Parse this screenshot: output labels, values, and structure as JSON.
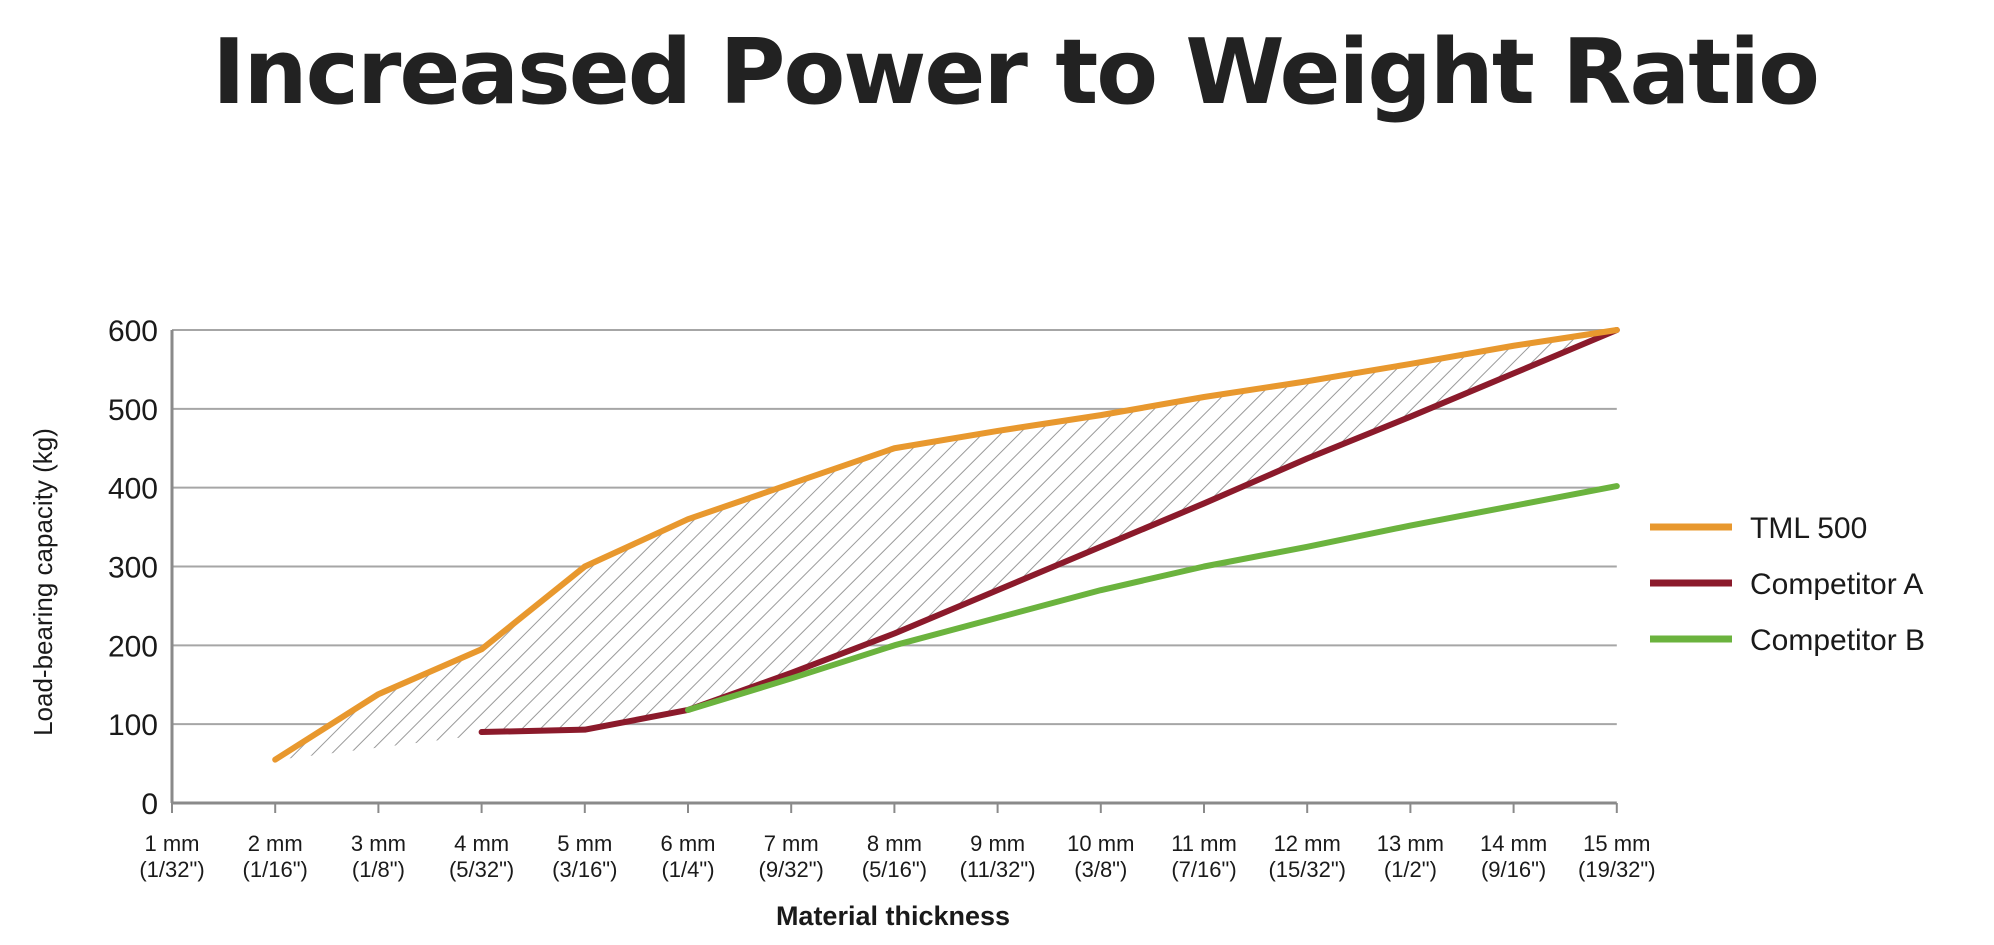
{
  "title": "Increased Power to Weight Ratio",
  "chart_data": {
    "type": "line",
    "xlabel": "Material thickness",
    "ylabel": "Load-bearing capacity (kg)",
    "ylim": [
      0,
      600
    ],
    "yticks": [
      0,
      100,
      200,
      300,
      400,
      500,
      600
    ],
    "grid": "horizontal",
    "legend_position": "right",
    "categories": [
      {
        "mm": "1 mm",
        "inch": "(1/32\")"
      },
      {
        "mm": "2 mm",
        "inch": "(1/16\")"
      },
      {
        "mm": "3 mm",
        "inch": "(1/8\")"
      },
      {
        "mm": "4 mm",
        "inch": "(5/32\")"
      },
      {
        "mm": "5 mm",
        "inch": "(3/16\")"
      },
      {
        "mm": "6 mm",
        "inch": "(1/4\")"
      },
      {
        "mm": "7 mm",
        "inch": "(9/32\")"
      },
      {
        "mm": "8 mm",
        "inch": "(5/16\")"
      },
      {
        "mm": "9 mm",
        "inch": "(11/32\")"
      },
      {
        "mm": "10 mm",
        "inch": "(3/8\")"
      },
      {
        "mm": "11 mm",
        "inch": "(7/16\")"
      },
      {
        "mm": "12 mm",
        "inch": "(15/32\")"
      },
      {
        "mm": "13 mm",
        "inch": "(1/2\")"
      },
      {
        "mm": "14 mm",
        "inch": "(9/16\")"
      },
      {
        "mm": "15 mm",
        "inch": "(19/32\")"
      }
    ],
    "series": [
      {
        "name": "TML 500",
        "color": "#E8982E",
        "values": [
          null,
          55,
          138,
          195,
          300,
          360,
          405,
          450,
          472,
          492,
          515,
          535,
          557,
          580,
          600
        ]
      },
      {
        "name": "Competitor A",
        "color": "#8B1A2B",
        "values": [
          null,
          null,
          null,
          90,
          93,
          118,
          165,
          215,
          270,
          325,
          380,
          437,
          490,
          545,
          600
        ]
      },
      {
        "name": "Competitor B",
        "color": "#6BB33E",
        "values": [
          null,
          null,
          null,
          null,
          null,
          118,
          158,
          200,
          235,
          270,
          300,
          325,
          352,
          377,
          402
        ]
      }
    ],
    "annotation": "hatched area between TML 500 and competitors"
  }
}
